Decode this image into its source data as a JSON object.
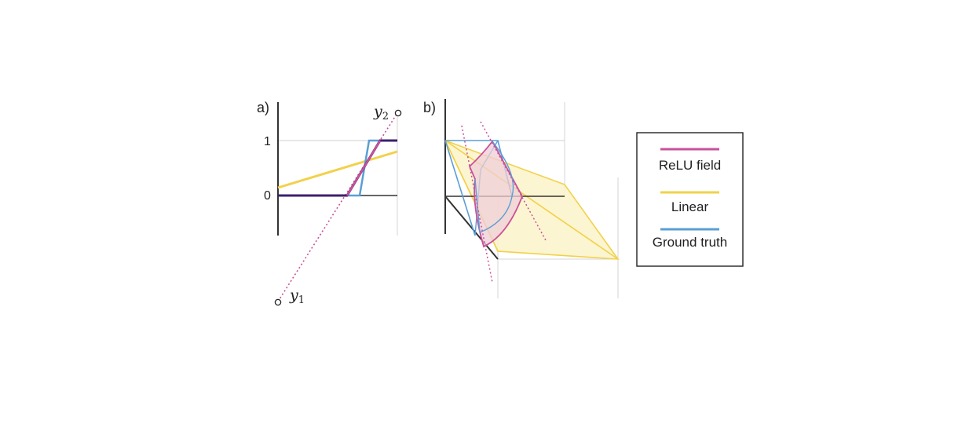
{
  "panel_a": {
    "label": "a)",
    "tick_1": "1",
    "tick_0": "0",
    "y1_base": "y",
    "y1_sub": "1",
    "y2_base": "y",
    "y2_sub": "2"
  },
  "panel_b": {
    "label": "b)"
  },
  "legend": {
    "items": [
      {
        "label": "ReLU field",
        "color": "#c9519a"
      },
      {
        "label": "Linear",
        "color": "#f2d14a"
      },
      {
        "label": "Ground truth",
        "color": "#5a9fd4"
      }
    ]
  },
  "colors": {
    "relu_dark": "#3b1f6e",
    "relu": "#c9519a",
    "linear": "#f2d14a",
    "ground_truth": "#5a9fd4",
    "axis": "#333333",
    "grid": "#cccccc"
  }
}
